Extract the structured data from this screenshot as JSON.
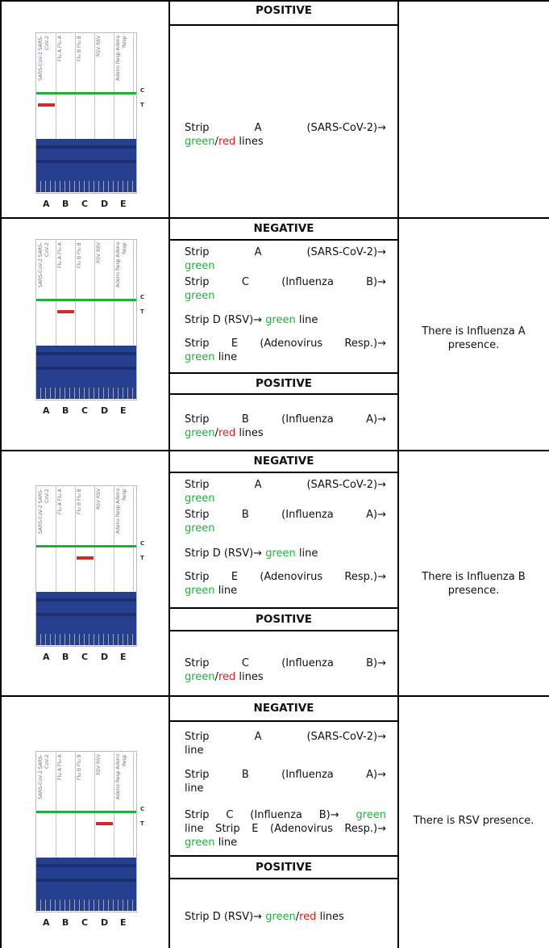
{
  "colors": {
    "green": "#1fb03c",
    "red": "#e01b1b",
    "strip_blue": "#25408f",
    "border": "#000000"
  },
  "strip_labels": [
    "SARS-CoV-2",
    "Flu A",
    "Flu B",
    "RSV",
    "Adeno Resp"
  ],
  "strip_letters": [
    "A",
    "B",
    "C",
    "D",
    "E"
  ],
  "strip_marks": {
    "control": "C",
    "test": "T"
  },
  "common": {
    "green": "green",
    "red": "red",
    "slash": "/",
    "lines": "lines",
    "line": "line"
  },
  "rows": [
    {
      "positive_strip": "A",
      "positive_header": "POSITIVE",
      "positive_entry": "Strip A (SARS-CoV-2)→",
      "result": ""
    },
    {
      "positive_strip": "B",
      "negative_header": "NEGATIVE",
      "negative_entries": [
        "Strip A (SARS-CoV-2)→",
        "Strip C (Influenza B)→",
        "Strip D (RSV)→",
        "Strip E (Adenovirus Resp.)→"
      ],
      "positive_header": "POSITIVE",
      "positive_entry": "Strip B (Influenza A)→",
      "result": "There is Influenza A presence."
    },
    {
      "positive_strip": "C",
      "negative_header": "NEGATIVE",
      "negative_entries": [
        "Strip A (SARS-CoV-2)→",
        "Strip B (Influenza A)→",
        "Strip D (RSV)→",
        "Strip E (Adenovirus Resp.)→"
      ],
      "positive_header": "POSITIVE",
      "positive_entry": "Strip C (Influenza B)→",
      "result": "There is Influenza B presence."
    },
    {
      "positive_strip": "D",
      "negative_header": "NEGATIVE",
      "negative_entries": [
        "Strip A (SARS-CoV-2)→",
        "Strip B (Influenza A)→",
        "Strip C (Influenza B)→",
        "Strip E (Adenovirus Resp.)→"
      ],
      "positive_header": "POSITIVE",
      "positive_entry": "Strip D (RSV)→",
      "result": "There is RSV presence."
    }
  ]
}
